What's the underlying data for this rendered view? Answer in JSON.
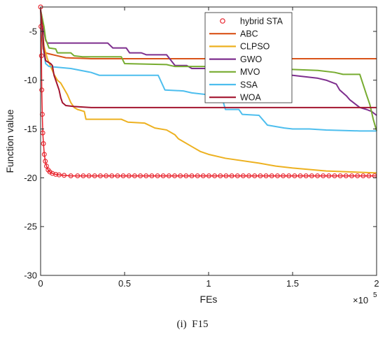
{
  "chart_data": {
    "type": "line",
    "xlabel": "FEs",
    "ylabel": "Function value",
    "x_multiplier_label": "×10",
    "x_multiplier_exp": "5",
    "caption": "(i)  F15",
    "xlim": [
      0,
      200000
    ],
    "ylim": [
      -30,
      -2.5
    ],
    "x_ticks": [
      0,
      50000,
      100000,
      150000,
      200000
    ],
    "x_tick_labels": [
      "0",
      "0.5",
      "1",
      "1.5",
      "2"
    ],
    "y_ticks": [
      -30,
      -25,
      -20,
      -15,
      -10,
      -5
    ],
    "y_tick_labels": [
      "-30",
      "-25",
      "-20",
      "-15",
      "-10",
      "-5"
    ],
    "grid": false,
    "legend_position": "top-right",
    "series": [
      {
        "name": "hybrid STA",
        "color": "#e8202a",
        "style": "markers",
        "points": [
          [
            0,
            -2.5
          ],
          [
            200,
            -4.5
          ],
          [
            500,
            -7.5
          ],
          [
            700,
            -11.0
          ],
          [
            1000,
            -13.5
          ],
          [
            1300,
            -15.4
          ],
          [
            1700,
            -16.5
          ],
          [
            2200,
            -17.6
          ],
          [
            2800,
            -18.3
          ],
          [
            3500,
            -18.8
          ],
          [
            4500,
            -19.2
          ],
          [
            5500,
            -19.4
          ],
          [
            7000,
            -19.55
          ],
          [
            9000,
            -19.65
          ],
          [
            11000,
            -19.7
          ],
          [
            14000,
            -19.75
          ],
          [
            18000,
            -19.8
          ],
          [
            200000,
            -19.8
          ]
        ]
      },
      {
        "name": "ABC",
        "color": "#d95319",
        "style": "line",
        "points": [
          [
            0,
            -2.8
          ],
          [
            800,
            -5.5
          ],
          [
            1500,
            -6.8
          ],
          [
            3000,
            -7.2
          ],
          [
            5000,
            -7.3
          ],
          [
            10000,
            -7.5
          ],
          [
            15000,
            -7.7
          ],
          [
            30000,
            -7.8
          ],
          [
            200000,
            -7.8
          ]
        ]
      },
      {
        "name": "CLPSO",
        "color": "#edb120",
        "style": "line",
        "points": [
          [
            0,
            -2.8
          ],
          [
            1000,
            -4.5
          ],
          [
            2000,
            -6.5
          ],
          [
            4000,
            -7.8
          ],
          [
            6000,
            -8.6
          ],
          [
            8000,
            -9.4
          ],
          [
            10000,
            -10.0
          ],
          [
            12000,
            -10.3
          ],
          [
            14000,
            -10.9
          ],
          [
            16000,
            -11.5
          ],
          [
            18000,
            -12.3
          ],
          [
            20000,
            -12.8
          ],
          [
            22000,
            -13.0
          ],
          [
            26000,
            -13.2
          ],
          [
            27000,
            -14.0
          ],
          [
            48000,
            -14.0
          ],
          [
            52000,
            -14.3
          ],
          [
            62000,
            -14.4
          ],
          [
            68000,
            -14.9
          ],
          [
            75000,
            -15.1
          ],
          [
            80000,
            -15.6
          ],
          [
            82000,
            -16.0
          ],
          [
            90000,
            -16.8
          ],
          [
            95000,
            -17.3
          ],
          [
            100000,
            -17.6
          ],
          [
            110000,
            -18.0
          ],
          [
            130000,
            -18.5
          ],
          [
            140000,
            -18.8
          ],
          [
            150000,
            -19.0
          ],
          [
            170000,
            -19.3
          ],
          [
            200000,
            -19.5
          ]
        ]
      },
      {
        "name": "GWO",
        "color": "#7e2f8e",
        "style": "line",
        "points": [
          [
            0,
            -2.8
          ],
          [
            1000,
            -3.8
          ],
          [
            2000,
            -5.0
          ],
          [
            3000,
            -5.9
          ],
          [
            4000,
            -6.2
          ],
          [
            40000,
            -6.2
          ],
          [
            43000,
            -6.7
          ],
          [
            51000,
            -6.7
          ],
          [
            53000,
            -7.2
          ],
          [
            60000,
            -7.2
          ],
          [
            63000,
            -7.4
          ],
          [
            75000,
            -7.4
          ],
          [
            80000,
            -8.5
          ],
          [
            87000,
            -8.5
          ],
          [
            90000,
            -8.8
          ],
          [
            120000,
            -8.8
          ],
          [
            125000,
            -9.1
          ],
          [
            140000,
            -9.2
          ],
          [
            150000,
            -9.5
          ],
          [
            165000,
            -9.8
          ],
          [
            170000,
            -10.0
          ],
          [
            176000,
            -10.4
          ],
          [
            178000,
            -11.0
          ],
          [
            182000,
            -11.6
          ],
          [
            184000,
            -12.0
          ],
          [
            190000,
            -12.8
          ],
          [
            194000,
            -13.0
          ],
          [
            197000,
            -13.2
          ],
          [
            200000,
            -13.6
          ]
        ]
      },
      {
        "name": "MVO",
        "color": "#77ac30",
        "style": "line",
        "points": [
          [
            0,
            -2.8
          ],
          [
            2000,
            -4.5
          ],
          [
            3000,
            -5.8
          ],
          [
            5000,
            -6.7
          ],
          [
            9000,
            -6.8
          ],
          [
            10000,
            -7.2
          ],
          [
            18000,
            -7.2
          ],
          [
            20000,
            -7.5
          ],
          [
            25000,
            -7.6
          ],
          [
            30000,
            -7.6
          ],
          [
            48000,
            -7.6
          ],
          [
            50000,
            -8.3
          ],
          [
            75000,
            -8.4
          ],
          [
            80000,
            -8.6
          ],
          [
            100000,
            -8.6
          ],
          [
            110000,
            -8.8
          ],
          [
            150000,
            -8.9
          ],
          [
            165000,
            -9.0
          ],
          [
            175000,
            -9.2
          ],
          [
            180000,
            -9.4
          ],
          [
            190000,
            -9.4
          ],
          [
            194000,
            -11.5
          ],
          [
            196000,
            -12.5
          ],
          [
            198000,
            -14.0
          ],
          [
            200000,
            -15.2
          ]
        ]
      },
      {
        "name": "SSA",
        "color": "#4dbeee",
        "style": "line",
        "points": [
          [
            0,
            -2.8
          ],
          [
            1000,
            -5.0
          ],
          [
            2000,
            -7.3
          ],
          [
            3000,
            -8.3
          ],
          [
            5000,
            -8.6
          ],
          [
            18000,
            -8.8
          ],
          [
            30000,
            -9.2
          ],
          [
            35000,
            -9.5
          ],
          [
            70000,
            -9.5
          ],
          [
            74000,
            -11.0
          ],
          [
            85000,
            -11.1
          ],
          [
            90000,
            -11.3
          ],
          [
            100000,
            -11.5
          ],
          [
            108000,
            -11.8
          ],
          [
            110000,
            -13.0
          ],
          [
            118000,
            -13.0
          ],
          [
            120000,
            -13.5
          ],
          [
            130000,
            -13.6
          ],
          [
            135000,
            -14.6
          ],
          [
            145000,
            -14.9
          ],
          [
            150000,
            -15.0
          ],
          [
            160000,
            -15.0
          ],
          [
            170000,
            -15.1
          ],
          [
            190000,
            -15.2
          ],
          [
            200000,
            -15.2
          ]
        ]
      },
      {
        "name": "WOA",
        "color": "#a2142f",
        "style": "line",
        "points": [
          [
            0,
            -2.8
          ],
          [
            1000,
            -4.5
          ],
          [
            2000,
            -7.0
          ],
          [
            3000,
            -8.0
          ],
          [
            5000,
            -8.2
          ],
          [
            6000,
            -8.3
          ],
          [
            7000,
            -8.5
          ],
          [
            8000,
            -9.5
          ],
          [
            9000,
            -10.0
          ],
          [
            10000,
            -10.5
          ],
          [
            11000,
            -11.0
          ],
          [
            12000,
            -11.8
          ],
          [
            13000,
            -12.3
          ],
          [
            15000,
            -12.6
          ],
          [
            20000,
            -12.7
          ],
          [
            30000,
            -12.8
          ],
          [
            200000,
            -12.8
          ]
        ]
      }
    ]
  }
}
